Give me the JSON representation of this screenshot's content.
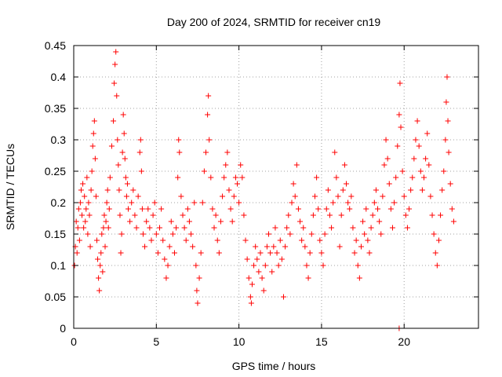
{
  "chart_data": {
    "type": "scatter",
    "title": "Day 200 of 2024, SRMTID for receiver cn19",
    "xlabel": "GPS time / hours",
    "ylabel": "SRMTID / TECUs",
    "xlim": [
      0,
      24.5
    ],
    "ylim": [
      0,
      0.45
    ],
    "xticks": [
      0,
      5,
      10,
      15,
      20
    ],
    "xtick_labels": [
      "0",
      "5",
      "10",
      "15",
      "20"
    ],
    "yticks": [
      0,
      0.05,
      0.1,
      0.15,
      0.2,
      0.25,
      0.3,
      0.35,
      0.4,
      0.45
    ],
    "ytick_labels": [
      "0",
      "0.05",
      "0.1",
      "0.15",
      "0.2",
      "0.25",
      "0.3",
      "0.35",
      "0.4",
      "0.45"
    ],
    "grid": true,
    "marker": "plus",
    "color": "#ff0000",
    "series": [
      {
        "name": "SRMTID",
        "points": [
          [
            0.05,
            0.1
          ],
          [
            0.1,
            0.13
          ],
          [
            0.15,
            0.17
          ],
          [
            0.2,
            0.12
          ],
          [
            0.25,
            0.16
          ],
          [
            0.3,
            0.19
          ],
          [
            0.35,
            0.14
          ],
          [
            0.4,
            0.2
          ],
          [
            0.45,
            0.22
          ],
          [
            0.5,
            0.18
          ],
          [
            0.55,
            0.23
          ],
          [
            0.6,
            0.16
          ],
          [
            0.65,
            0.21
          ],
          [
            0.7,
            0.17
          ],
          [
            0.75,
            0.19
          ],
          [
            0.8,
            0.24
          ],
          [
            0.85,
            0.15
          ],
          [
            0.9,
            0.2
          ],
          [
            0.95,
            0.18
          ],
          [
            1.0,
            0.13
          ],
          [
            1.05,
            0.22
          ],
          [
            1.1,
            0.25
          ],
          [
            1.15,
            0.29
          ],
          [
            1.2,
            0.31
          ],
          [
            1.25,
            0.33
          ],
          [
            1.3,
            0.27
          ],
          [
            1.35,
            0.21
          ],
          [
            1.4,
            0.14
          ],
          [
            1.45,
            0.11
          ],
          [
            1.5,
            0.08
          ],
          [
            1.55,
            0.06
          ],
          [
            1.6,
            0.1
          ],
          [
            1.65,
            0.12
          ],
          [
            1.7,
            0.15
          ],
          [
            1.75,
            0.09
          ],
          [
            1.8,
            0.16
          ],
          [
            1.85,
            0.18
          ],
          [
            1.9,
            0.13
          ],
          [
            1.95,
            0.17
          ],
          [
            2.0,
            0.2
          ],
          [
            2.05,
            0.22
          ],
          [
            2.1,
            0.16
          ],
          [
            2.15,
            0.19
          ],
          [
            2.2,
            0.24
          ],
          [
            2.3,
            0.29
          ],
          [
            2.4,
            0.33
          ],
          [
            2.45,
            0.39
          ],
          [
            2.5,
            0.42
          ],
          [
            2.55,
            0.44
          ],
          [
            2.6,
            0.37
          ],
          [
            2.65,
            0.3
          ],
          [
            2.7,
            0.26
          ],
          [
            2.75,
            0.22
          ],
          [
            2.8,
            0.18
          ],
          [
            2.85,
            0.12
          ],
          [
            2.9,
            0.15
          ],
          [
            2.95,
            0.28
          ],
          [
            3.0,
            0.34
          ],
          [
            3.05,
            0.31
          ],
          [
            3.1,
            0.27
          ],
          [
            3.15,
            0.24
          ],
          [
            3.2,
            0.21
          ],
          [
            3.25,
            0.23
          ],
          [
            3.3,
            0.19
          ],
          [
            3.4,
            0.17
          ],
          [
            3.5,
            0.2
          ],
          [
            3.6,
            0.22
          ],
          [
            3.7,
            0.18
          ],
          [
            3.8,
            0.16
          ],
          [
            3.9,
            0.21
          ],
          [
            4.0,
            0.28
          ],
          [
            4.05,
            0.3
          ],
          [
            4.1,
            0.25
          ],
          [
            4.15,
            0.19
          ],
          [
            4.2,
            0.15
          ],
          [
            4.3,
            0.13
          ],
          [
            4.4,
            0.17
          ],
          [
            4.5,
            0.19
          ],
          [
            4.6,
            0.16
          ],
          [
            4.7,
            0.14
          ],
          [
            4.8,
            0.18
          ],
          [
            4.9,
            0.2
          ],
          [
            5.0,
            0.15
          ],
          [
            5.1,
            0.12
          ],
          [
            5.2,
            0.16
          ],
          [
            5.3,
            0.19
          ],
          [
            5.4,
            0.14
          ],
          [
            5.5,
            0.11
          ],
          [
            5.6,
            0.08
          ],
          [
            5.7,
            0.1
          ],
          [
            5.8,
            0.13
          ],
          [
            5.9,
            0.17
          ],
          [
            6.0,
            0.15
          ],
          [
            6.1,
            0.12
          ],
          [
            6.2,
            0.16
          ],
          [
            6.3,
            0.24
          ],
          [
            6.35,
            0.3
          ],
          [
            6.4,
            0.28
          ],
          [
            6.5,
            0.21
          ],
          [
            6.6,
            0.18
          ],
          [
            6.7,
            0.16
          ],
          [
            6.8,
            0.14
          ],
          [
            6.9,
            0.19
          ],
          [
            7.0,
            0.17
          ],
          [
            7.1,
            0.15
          ],
          [
            7.2,
            0.13
          ],
          [
            7.3,
            0.2
          ],
          [
            7.4,
            0.1
          ],
          [
            7.45,
            0.06
          ],
          [
            7.5,
            0.04
          ],
          [
            7.6,
            0.08
          ],
          [
            7.7,
            0.12
          ],
          [
            7.8,
            0.2
          ],
          [
            7.9,
            0.25
          ],
          [
            8.0,
            0.28
          ],
          [
            8.1,
            0.34
          ],
          [
            8.15,
            0.37
          ],
          [
            8.2,
            0.3
          ],
          [
            8.3,
            0.24
          ],
          [
            8.4,
            0.19
          ],
          [
            8.5,
            0.16
          ],
          [
            8.6,
            0.18
          ],
          [
            8.7,
            0.14
          ],
          [
            8.8,
            0.12
          ],
          [
            8.9,
            0.17
          ],
          [
            9.0,
            0.21
          ],
          [
            9.1,
            0.24
          ],
          [
            9.2,
            0.26
          ],
          [
            9.3,
            0.28
          ],
          [
            9.4,
            0.22
          ],
          [
            9.5,
            0.19
          ],
          [
            9.6,
            0.17
          ],
          [
            9.7,
            0.21
          ],
          [
            9.8,
            0.24
          ],
          [
            9.9,
            0.23
          ],
          [
            10.0,
            0.2
          ],
          [
            10.1,
            0.26
          ],
          [
            10.2,
            0.24
          ],
          [
            10.3,
            0.18
          ],
          [
            10.4,
            0.14
          ],
          [
            10.5,
            0.11
          ],
          [
            10.6,
            0.08
          ],
          [
            10.7,
            0.05
          ],
          [
            10.75,
            0.04
          ],
          [
            10.8,
            0.07
          ],
          [
            10.9,
            0.1
          ],
          [
            11.0,
            0.13
          ],
          [
            11.1,
            0.11
          ],
          [
            11.2,
            0.09
          ],
          [
            11.3,
            0.12
          ],
          [
            11.4,
            0.08
          ],
          [
            11.5,
            0.06
          ],
          [
            11.6,
            0.1
          ],
          [
            11.7,
            0.13
          ],
          [
            11.8,
            0.15
          ],
          [
            11.9,
            0.12
          ],
          [
            12.0,
            0.09
          ],
          [
            12.1,
            0.13
          ],
          [
            12.2,
            0.16
          ],
          [
            12.3,
            0.12
          ],
          [
            12.4,
            0.1
          ],
          [
            12.5,
            0.14
          ],
          [
            12.6,
            0.11
          ],
          [
            12.7,
            0.05
          ],
          [
            12.8,
            0.13
          ],
          [
            12.9,
            0.16
          ],
          [
            13.0,
            0.18
          ],
          [
            13.1,
            0.15
          ],
          [
            13.2,
            0.2
          ],
          [
            13.3,
            0.23
          ],
          [
            13.4,
            0.21
          ],
          [
            13.5,
            0.26
          ],
          [
            13.6,
            0.19
          ],
          [
            13.7,
            0.17
          ],
          [
            13.8,
            0.14
          ],
          [
            13.9,
            0.16
          ],
          [
            14.0,
            0.13
          ],
          [
            14.1,
            0.1
          ],
          [
            14.2,
            0.08
          ],
          [
            14.3,
            0.12
          ],
          [
            14.4,
            0.15
          ],
          [
            14.5,
            0.18
          ],
          [
            14.6,
            0.21
          ],
          [
            14.7,
            0.24
          ],
          [
            14.8,
            0.19
          ],
          [
            14.9,
            0.14
          ],
          [
            15.0,
            0.12
          ],
          [
            15.1,
            0.1
          ],
          [
            15.2,
            0.15
          ],
          [
            15.3,
            0.19
          ],
          [
            15.4,
            0.22
          ],
          [
            15.5,
            0.18
          ],
          [
            15.6,
            0.16
          ],
          [
            15.7,
            0.2
          ],
          [
            15.8,
            0.28
          ],
          [
            15.9,
            0.24
          ],
          [
            16.0,
            0.21
          ],
          [
            16.1,
            0.13
          ],
          [
            16.2,
            0.18
          ],
          [
            16.3,
            0.22
          ],
          [
            16.4,
            0.26
          ],
          [
            16.5,
            0.23
          ],
          [
            16.6,
            0.2
          ],
          [
            16.7,
            0.19
          ],
          [
            16.8,
            0.21
          ],
          [
            16.9,
            0.16
          ],
          [
            17.0,
            0.12
          ],
          [
            17.1,
            0.14
          ],
          [
            17.2,
            0.1
          ],
          [
            17.3,
            0.08
          ],
          [
            17.4,
            0.13
          ],
          [
            17.5,
            0.17
          ],
          [
            17.6,
            0.15
          ],
          [
            17.7,
            0.19
          ],
          [
            17.8,
            0.14
          ],
          [
            17.9,
            0.12
          ],
          [
            18.0,
            0.16
          ],
          [
            18.1,
            0.18
          ],
          [
            18.2,
            0.2
          ],
          [
            18.3,
            0.22
          ],
          [
            18.4,
            0.19
          ],
          [
            18.5,
            0.17
          ],
          [
            18.6,
            0.15
          ],
          [
            18.7,
            0.21
          ],
          [
            18.8,
            0.26
          ],
          [
            18.9,
            0.3
          ],
          [
            19.0,
            0.27
          ],
          [
            19.1,
            0.23
          ],
          [
            19.2,
            0.19
          ],
          [
            19.3,
            0.16
          ],
          [
            19.4,
            0.2
          ],
          [
            19.5,
            0.24
          ],
          [
            19.6,
            0.29
          ],
          [
            19.7,
            0.34
          ],
          [
            19.75,
            0.39
          ],
          [
            19.8,
            0.32
          ],
          [
            19.9,
            0.25
          ],
          [
            20.0,
            0.21
          ],
          [
            20.1,
            0.18
          ],
          [
            20.2,
            0.16
          ],
          [
            20.3,
            0.19
          ],
          [
            20.4,
            0.22
          ],
          [
            20.5,
            0.24
          ],
          [
            20.6,
            0.27
          ],
          [
            20.7,
            0.3
          ],
          [
            20.8,
            0.33
          ],
          [
            20.9,
            0.29
          ],
          [
            21.0,
            0.25
          ],
          [
            21.1,
            0.22
          ],
          [
            21.2,
            0.24
          ],
          [
            21.3,
            0.27
          ],
          [
            21.4,
            0.31
          ],
          [
            21.5,
            0.26
          ],
          [
            21.6,
            0.21
          ],
          [
            21.7,
            0.18
          ],
          [
            21.8,
            0.15
          ],
          [
            21.9,
            0.12
          ],
          [
            22.0,
            0.1
          ],
          [
            22.1,
            0.14
          ],
          [
            22.2,
            0.18
          ],
          [
            22.3,
            0.22
          ],
          [
            22.4,
            0.25
          ],
          [
            22.5,
            0.3
          ],
          [
            22.55,
            0.36
          ],
          [
            22.6,
            0.4
          ],
          [
            22.65,
            0.33
          ],
          [
            22.7,
            0.28
          ],
          [
            22.8,
            0.23
          ],
          [
            22.9,
            0.19
          ],
          [
            23.0,
            0.17
          ],
          [
            19.7,
            0.0
          ]
        ]
      }
    ]
  }
}
